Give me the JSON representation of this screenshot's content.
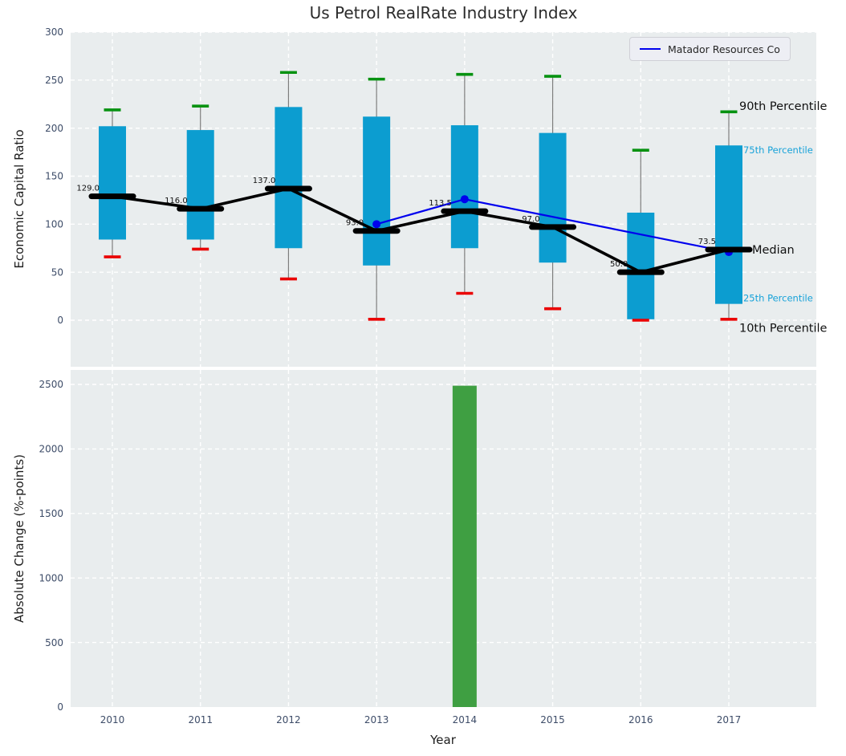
{
  "figure": {
    "title": "Us Petrol RealRate Industry Index",
    "plot_background": "#e9edee",
    "gridline_color": "#ffffff"
  },
  "chart_data": [
    {
      "type": "box",
      "title": "Us Petrol RealRate Industry Index",
      "ylabel": "Economic Capital Ratio",
      "ylim": [
        -48.5,
        300
      ],
      "yticks": [
        0,
        50,
        100,
        150,
        200,
        250,
        300
      ],
      "grid": "dashed-white",
      "categories": [
        "2010",
        "2011",
        "2012",
        "2013",
        "2014",
        "2015",
        "2016",
        "2017"
      ],
      "box_color": "#0c9dd0",
      "p90_cap_color": "#079211",
      "p10_cap_color": "#ea0000",
      "whisker_color": "#7d7d7d",
      "median_color": "#000000",
      "boxes": [
        {
          "category": "2010",
          "p10": 66,
          "p25": 84,
          "median": 129.0,
          "p75": 202,
          "p90": 219,
          "median_label": "129.0"
        },
        {
          "category": "2011",
          "p10": 74,
          "p25": 84,
          "median": 116.0,
          "p75": 198,
          "p90": 223,
          "median_label": "116.0"
        },
        {
          "category": "2012",
          "p10": 43,
          "p25": 75,
          "median": 137.0,
          "p75": 222,
          "p90": 258,
          "median_label": "137.0"
        },
        {
          "category": "2013",
          "p10": 1,
          "p25": 57,
          "median": 93.0,
          "p75": 212,
          "p90": 251,
          "median_label": "93.0"
        },
        {
          "category": "2014",
          "p10": 28,
          "p25": 75,
          "median": 113.5,
          "p75": 203,
          "p90": 256,
          "median_label": "113.5"
        },
        {
          "category": "2015",
          "p10": 12,
          "p25": 60,
          "median": 97.0,
          "p75": 195,
          "p90": 254,
          "median_label": "97.0"
        },
        {
          "category": "2016",
          "p10": 0,
          "p25": 1,
          "median": 50.0,
          "p75": 112,
          "p90": 177,
          "median_label": "50.0"
        },
        {
          "category": "2017",
          "p10": 1,
          "p25": 17,
          "median": 73.5,
          "p75": 182,
          "p90": 217,
          "median_label": "73.5"
        }
      ],
      "overlay_series": {
        "name": "Matador Resources Co",
        "color": "#0000ee",
        "points": [
          [
            "2013",
            100
          ],
          [
            "2014",
            126
          ],
          [
            "2017",
            71
          ]
        ]
      },
      "legend": {
        "position": "upper right",
        "entries": [
          {
            "label": "Matador Resources Co",
            "color": "#0000ee"
          }
        ]
      },
      "annotations": [
        {
          "text": "90th Percentile",
          "anchor_value": 223,
          "color": "#111111",
          "size": "large"
        },
        {
          "text": "75th Percentile",
          "anchor_value": 177,
          "color": "#17a2d9",
          "size": "small"
        },
        {
          "text": "Median",
          "anchor_value": 73.5,
          "color": "#111111",
          "size": "large"
        },
        {
          "text": "25th Percentile",
          "anchor_value": 23,
          "color": "#17a2d9",
          "size": "small"
        },
        {
          "text": "10th Percentile",
          "anchor_value": -8,
          "color": "#111111",
          "size": "large"
        }
      ]
    },
    {
      "type": "bar",
      "ylabel": "Absolute Change (%-points)",
      "xlabel": "Year",
      "ylim": [
        0,
        2612
      ],
      "yticks": [
        0,
        500,
        1000,
        1500,
        2000,
        2500
      ],
      "grid": "dashed-white",
      "categories": [
        "2010",
        "2011",
        "2012",
        "2013",
        "2014",
        "2015",
        "2016",
        "2017"
      ],
      "bar_color": "#3f9f42",
      "values": [
        0,
        0,
        0,
        0,
        2490,
        0,
        0,
        0
      ]
    }
  ]
}
